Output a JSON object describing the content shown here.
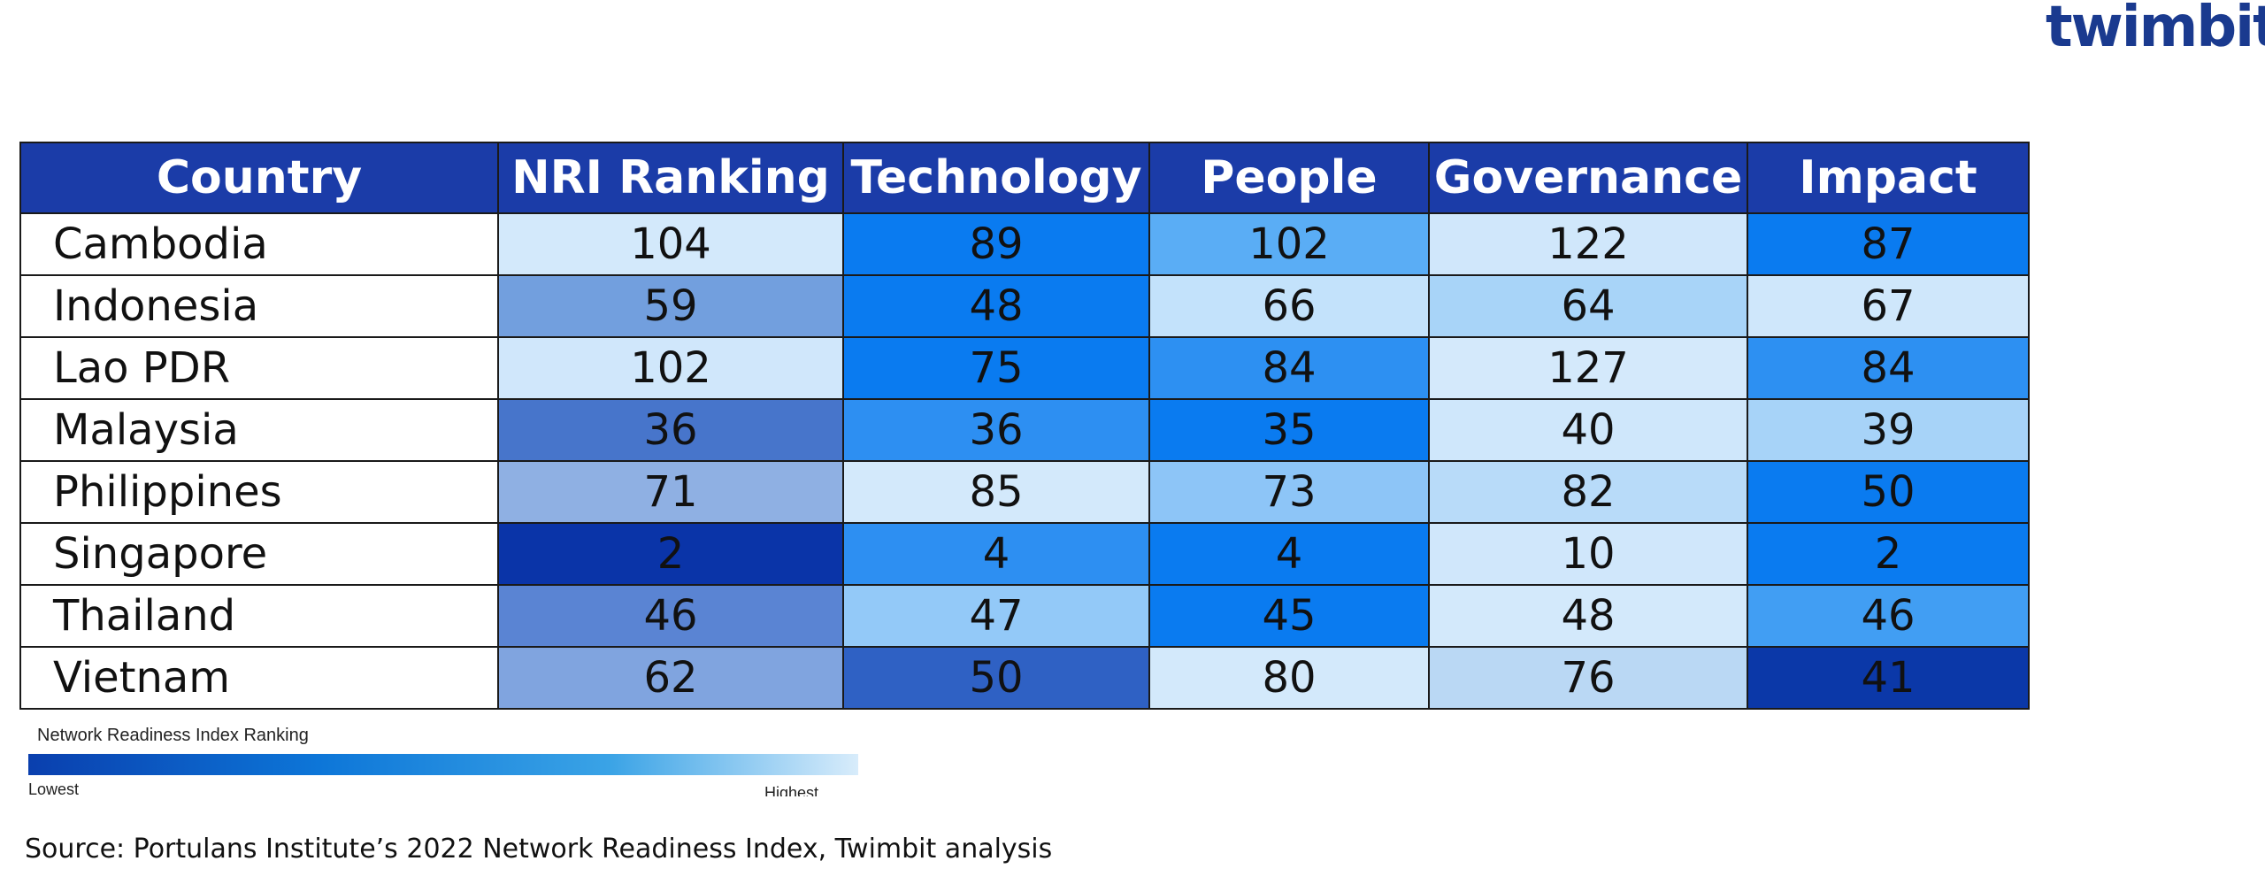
{
  "brand": {
    "logo_text": "twimbit"
  },
  "chart_data": {
    "type": "table",
    "columns": [
      "Country",
      "NRI Ranking",
      "Technology",
      "People",
      "Governance",
      "Impact"
    ],
    "rows": [
      {
        "country": "Cambodia",
        "values": [
          104,
          89,
          102,
          122,
          87
        ]
      },
      {
        "country": "Indonesia",
        "values": [
          59,
          48,
          66,
          64,
          67
        ]
      },
      {
        "country": "Lao PDR",
        "values": [
          102,
          75,
          84,
          127,
          84
        ]
      },
      {
        "country": "Malaysia",
        "values": [
          36,
          36,
          35,
          40,
          39
        ]
      },
      {
        "country": "Philippines",
        "values": [
          71,
          85,
          73,
          82,
          50
        ]
      },
      {
        "country": "Singapore",
        "values": [
          2,
          4,
          4,
          10,
          2
        ]
      },
      {
        "country": "Thailand",
        "values": [
          46,
          47,
          45,
          48,
          46
        ]
      },
      {
        "country": "Vietnam",
        "values": [
          62,
          50,
          80,
          76,
          41
        ]
      }
    ],
    "cell_colors": [
      [
        "#d3e9fb",
        "#0a7bf0",
        "#5aadf5",
        "#d0e7fb",
        "#0a7bf0"
      ],
      [
        "#729fde",
        "#0a7bf0",
        "#c3e2fb",
        "#a8d4f8",
        "#cfe7fb"
      ],
      [
        "#d0e7fb",
        "#0a7bf0",
        "#2d90f2",
        "#d4e9fb",
        "#2d90f2"
      ],
      [
        "#4775cb",
        "#2d8ff2",
        "#0a7bf0",
        "#cfe7fb",
        "#a7d3f8"
      ],
      [
        "#8fb0e3",
        "#d3e9fb",
        "#8dc5f7",
        "#b8dbf9",
        "#0a7bf0"
      ],
      [
        "#0a34a8",
        "#2d8ff2",
        "#0a7bf0",
        "#d0e7fb",
        "#0a7bf0"
      ],
      [
        "#5a84d3",
        "#93c9f8",
        "#0a7bf0",
        "#d3e9fb",
        "#419ef3"
      ],
      [
        "#80a4df",
        "#2f61c4",
        "#d3e9fb",
        "#bad8f4",
        "#0b38a8"
      ]
    ],
    "legend": {
      "title": "Network Readiness Index Ranking",
      "low_label": "Lowest",
      "high_label": "Highest",
      "colors": [
        "#0a3fae",
        "#d8ecfb"
      ]
    }
  },
  "footer": {
    "source": "Source: Portulans Institute’s 2022 Network Readiness Index, Twimbit analysis"
  }
}
